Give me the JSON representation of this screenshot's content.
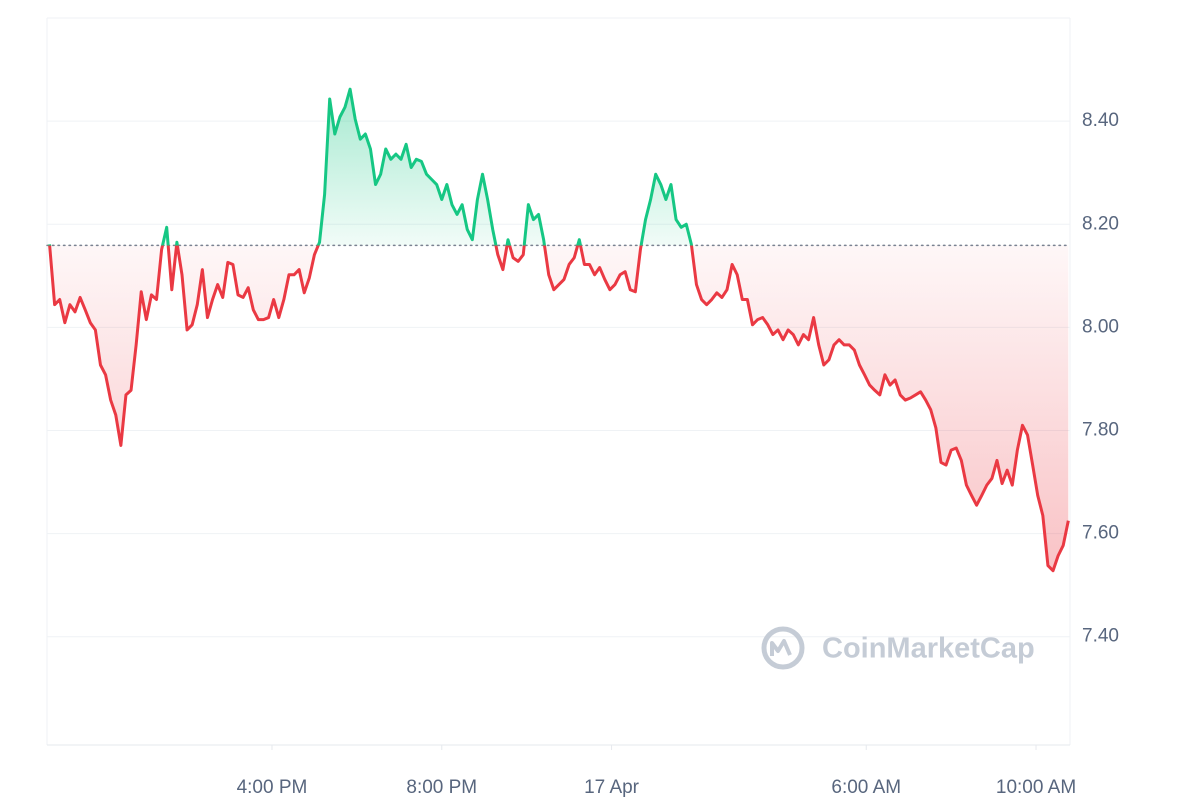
{
  "chart_data": {
    "type": "line",
    "watermark": "CoinMarketCap",
    "baseline": 8.159,
    "up_color": "#16c784",
    "down_color": "#ea3943",
    "grid": true,
    "xlim": [
      10.7,
      34.8
    ],
    "xticks": [
      {
        "value": 16,
        "label": "4:00 PM"
      },
      {
        "value": 20,
        "label": "8:00 PM"
      },
      {
        "value": 24,
        "label": "17 Apr"
      },
      {
        "value": 30,
        "label": "6:00 AM"
      },
      {
        "value": 34,
        "label": "10:00 AM"
      }
    ],
    "ylim": [
      7.19,
      8.6
    ],
    "yticks": [
      {
        "value": 7.4,
        "label": "7.40"
      },
      {
        "value": 7.6,
        "label": "7.60"
      },
      {
        "value": 7.8,
        "label": "7.80"
      },
      {
        "value": 8.0,
        "label": "8.00"
      },
      {
        "value": 8.2,
        "label": "8.20"
      },
      {
        "value": 8.4,
        "label": "8.40"
      }
    ],
    "x": [
      10.76,
      10.88,
      11.0,
      11.12,
      11.24,
      11.36,
      11.48,
      11.6,
      11.72,
      11.84,
      11.96,
      12.08,
      12.2,
      12.32,
      12.44,
      12.56,
      12.68,
      12.8,
      12.92,
      13.04,
      13.16,
      13.28,
      13.4,
      13.52,
      13.64,
      13.76,
      13.88,
      14.0,
      14.12,
      14.24,
      14.36,
      14.48,
      14.6,
      14.72,
      14.84,
      14.96,
      15.08,
      15.2,
      15.32,
      15.44,
      15.56,
      15.68,
      15.8,
      15.92,
      16.04,
      16.16,
      16.28,
      16.4,
      16.52,
      16.64,
      16.76,
      16.88,
      17.0,
      17.12,
      17.24,
      17.36,
      17.48,
      17.6,
      17.72,
      17.84,
      17.96,
      18.08,
      18.2,
      18.32,
      18.44,
      18.56,
      18.68,
      18.8,
      18.92,
      19.04,
      19.16,
      19.28,
      19.4,
      19.52,
      19.64,
      19.76,
      19.88,
      20.0,
      20.12,
      20.24,
      20.36,
      20.48,
      20.6,
      20.72,
      20.84,
      20.96,
      21.08,
      21.2,
      21.32,
      21.44,
      21.56,
      21.68,
      21.8,
      21.92,
      22.04,
      22.16,
      22.28,
      22.4,
      22.52,
      22.64,
      22.76,
      22.88,
      23.0,
      23.12,
      23.24,
      23.36,
      23.48,
      23.6,
      23.72,
      23.84,
      23.96,
      24.08,
      24.2,
      24.32,
      24.44,
      24.56,
      24.68,
      24.8,
      24.92,
      25.04,
      25.16,
      25.28,
      25.4,
      25.52,
      25.64,
      25.76,
      25.88,
      26.0,
      26.12,
      26.24,
      26.36,
      26.48,
      26.6,
      26.72,
      26.84,
      26.96,
      27.08,
      27.2,
      27.32,
      27.44,
      27.56,
      27.68,
      27.8,
      27.92,
      28.04,
      28.16,
      28.28,
      28.4,
      28.52,
      28.64,
      28.76,
      28.88,
      29.0,
      29.12,
      29.24,
      29.36,
      29.48,
      29.6,
      29.72,
      29.84,
      29.96,
      30.08,
      30.2,
      30.32,
      30.44,
      30.56,
      30.68,
      30.8,
      30.92,
      31.04,
      31.16,
      31.28,
      31.4,
      31.52,
      31.64,
      31.76,
      31.88,
      32.0,
      32.12,
      32.24,
      32.36,
      32.48,
      32.6,
      32.72,
      32.84,
      32.96,
      33.08,
      33.2,
      33.32,
      33.44,
      33.56,
      33.68,
      33.8,
      33.92,
      34.04,
      34.16,
      34.28,
      34.4,
      34.52,
      34.64,
      34.76
    ],
    "values": [
      8.161,
      8.044,
      8.054,
      8.009,
      8.044,
      8.03,
      8.058,
      8.034,
      8.009,
      7.995,
      7.927,
      7.908,
      7.859,
      7.83,
      7.771,
      7.869,
      7.878,
      7.966,
      8.069,
      8.015,
      8.063,
      8.054,
      8.151,
      8.194,
      8.073,
      8.165,
      8.102,
      7.995,
      8.005,
      8.044,
      8.112,
      8.019,
      8.054,
      8.083,
      8.058,
      8.126,
      8.122,
      8.063,
      8.058,
      8.077,
      8.034,
      8.015,
      8.015,
      8.019,
      8.054,
      8.019,
      8.054,
      8.102,
      8.102,
      8.112,
      8.067,
      8.096,
      8.141,
      8.165,
      8.258,
      8.443,
      8.375,
      8.408,
      8.427,
      8.462,
      8.404,
      8.365,
      8.375,
      8.346,
      8.277,
      8.297,
      8.346,
      8.326,
      8.336,
      8.326,
      8.355,
      8.31,
      8.326,
      8.322,
      8.297,
      8.287,
      8.277,
      8.248,
      8.277,
      8.238,
      8.219,
      8.238,
      8.19,
      8.17,
      8.248,
      8.297,
      8.248,
      8.19,
      8.141,
      8.112,
      8.17,
      8.135,
      8.128,
      8.141,
      8.238,
      8.209,
      8.219,
      8.17,
      8.102,
      8.073,
      8.083,
      8.093,
      8.122,
      8.135,
      8.17,
      8.122,
      8.122,
      8.102,
      8.116,
      8.093,
      8.073,
      8.083,
      8.102,
      8.108,
      8.073,
      8.069,
      8.151,
      8.209,
      8.248,
      8.297,
      8.277,
      8.248,
      8.277,
      8.209,
      8.194,
      8.2,
      8.161,
      8.083,
      8.054,
      8.044,
      8.054,
      8.067,
      8.058,
      8.073,
      8.122,
      8.102,
      8.054,
      8.054,
      8.005,
      8.015,
      8.019,
      8.005,
      7.986,
      7.995,
      7.976,
      7.995,
      7.986,
      7.966,
      7.986,
      7.976,
      8.019,
      7.966,
      7.927,
      7.937,
      7.966,
      7.976,
      7.966,
      7.966,
      7.956,
      7.927,
      7.908,
      7.888,
      7.878,
      7.869,
      7.908,
      7.888,
      7.898,
      7.869,
      7.859,
      7.863,
      7.869,
      7.875,
      7.859,
      7.84,
      7.805,
      7.738,
      7.733,
      7.762,
      7.766,
      7.742,
      7.694,
      7.674,
      7.655,
      7.674,
      7.694,
      7.707,
      7.742,
      7.697,
      7.723,
      7.694,
      7.762,
      7.81,
      7.791,
      7.733,
      7.674,
      7.635,
      7.538,
      7.528,
      7.557,
      7.577,
      7.625
    ]
  }
}
